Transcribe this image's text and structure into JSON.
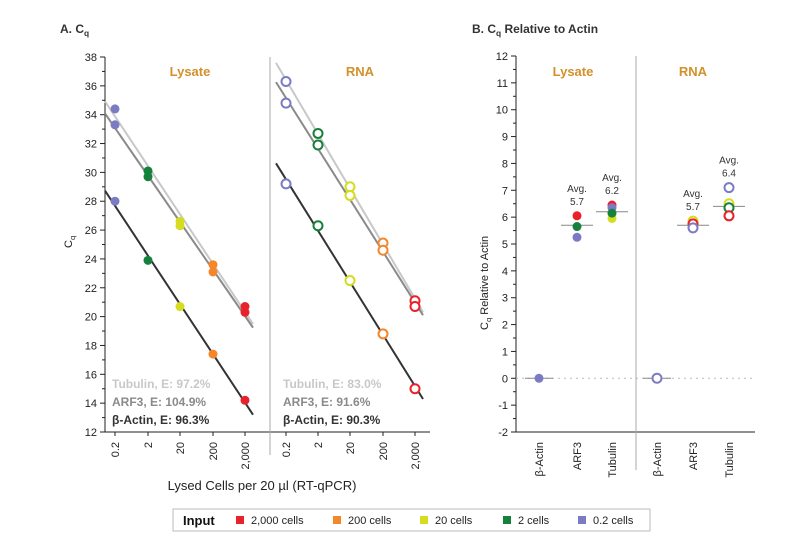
{
  "chart_data": [
    {
      "type": "scatter",
      "title": "A. C",
      "title_sub": "q",
      "ylabel": "C",
      "ylabel_sub": "q",
      "xlabel": "Lysed Cells per 20 µl (RT-qPCR)",
      "ylim": [
        12,
        38
      ],
      "yticks": [
        12,
        14,
        16,
        18,
        20,
        22,
        24,
        26,
        28,
        30,
        32,
        34,
        36,
        38
      ],
      "x_scale": "log",
      "x_tick_labels": [
        "0.2",
        "2",
        "20",
        "200",
        "2,000"
      ],
      "x": [
        0.2,
        2,
        20,
        200,
        2000
      ],
      "groups": [
        {
          "name": "Lysate",
          "marker": "filled",
          "series": [
            {
              "name": "Tubulin",
              "label": "Tubulin, E: 97.2%",
              "line_color": "#c8c8c8",
              "values": [
                34.4,
                30.1,
                26.6,
                23.6,
                20.7
              ]
            },
            {
              "name": "ARF3",
              "label": "ARF3, E: 104.9%",
              "line_color": "#8a8a8a",
              "values": [
                33.3,
                29.7,
                26.3,
                23.1,
                20.3
              ]
            },
            {
              "name": "β-Actin",
              "label": "β-Actin, E: 96.3%",
              "line_color": "#333333",
              "values": [
                28.0,
                23.9,
                20.7,
                17.4,
                14.2
              ]
            }
          ]
        },
        {
          "name": "RNA",
          "marker": "open",
          "series": [
            {
              "name": "Tubulin",
              "label": "Tubulin, E: 83.0%",
              "line_color": "#c8c8c8",
              "values": [
                36.3,
                32.7,
                29.0,
                25.1,
                21.1
              ]
            },
            {
              "name": "ARF3",
              "label": "ARF3, E: 91.6%",
              "line_color": "#8a8a8a",
              "values": [
                34.8,
                31.9,
                28.4,
                24.6,
                20.7
              ]
            },
            {
              "name": "β-Actin",
              "label": "β-Actin, E: 90.3%",
              "line_color": "#333333",
              "values": [
                29.2,
                26.3,
                22.5,
                18.8,
                15.0
              ]
            }
          ]
        }
      ]
    },
    {
      "type": "scatter",
      "title": "B. C",
      "title_sub": "q",
      "title_rest": " Relative to Actin",
      "ylabel": "C",
      "ylabel_sub": "q",
      "ylabel_rest": " Relative to Actin",
      "ylim": [
        -2,
        12
      ],
      "yticks": [
        -2,
        -1,
        0,
        1,
        2,
        3,
        4,
        5,
        6,
        7,
        8,
        9,
        10,
        11,
        12
      ],
      "groups": [
        {
          "name": "Lysate",
          "marker": "filled",
          "categories": [
            {
              "name": "β-Actin",
              "points": [
                {
                  "input": "0.2 cells",
                  "value": 0
                }
              ]
            },
            {
              "name": "ARF3",
              "avg_label": "Avg.",
              "avg": "5.7",
              "points": [
                {
                  "input": "2,000 cells",
                  "value": 6.05
                },
                {
                  "input": "2 cells",
                  "value": 5.65
                },
                {
                  "input": "0.2 cells",
                  "value": 5.25
                }
              ]
            },
            {
              "name": "Tubulin",
              "avg_label": "Avg.",
              "avg": "6.2",
              "points": [
                {
                  "input": "2,000 cells",
                  "value": 6.45
                },
                {
                  "input": "0.2 cells",
                  "value": 6.35
                },
                {
                  "input": "20 cells",
                  "value": 5.95
                },
                {
                  "input": "2 cells",
                  "value": 6.15
                }
              ]
            }
          ]
        },
        {
          "name": "RNA",
          "marker": "open",
          "categories": [
            {
              "name": "β-Actin",
              "points": [
                {
                  "input": "0.2 cells",
                  "value": 0
                }
              ]
            },
            {
              "name": "ARF3",
              "avg_label": "Avg.",
              "avg": "5.7",
              "points": [
                {
                  "input": "20 cells",
                  "value": 5.85
                },
                {
                  "input": "2,000 cells",
                  "value": 5.75
                },
                {
                  "input": "0.2 cells",
                  "value": 5.6
                }
              ]
            },
            {
              "name": "Tubulin",
              "avg_label": "Avg.",
              "avg": "6.4",
              "points": [
                {
                  "input": "0.2 cells",
                  "value": 7.1
                },
                {
                  "input": "20 cells",
                  "value": 6.5
                },
                {
                  "input": "2 cells",
                  "value": 6.35
                },
                {
                  "input": "2,000 cells",
                  "value": 6.05
                }
              ]
            }
          ]
        }
      ]
    }
  ],
  "legend": {
    "title": "Input",
    "placement": "bottom",
    "items": [
      {
        "label": "2,000 cells",
        "color": "#e8212b"
      },
      {
        "label": "200 cells",
        "color": "#f5862a"
      },
      {
        "label": "20 cells",
        "color": "#d6dc1e"
      },
      {
        "label": "2 cells",
        "color": "#16813c"
      },
      {
        "label": "0.2 cells",
        "color": "#7b7bc4"
      }
    ]
  },
  "colors": {
    "group_label": "#d4902a",
    "axis": "#222222"
  }
}
